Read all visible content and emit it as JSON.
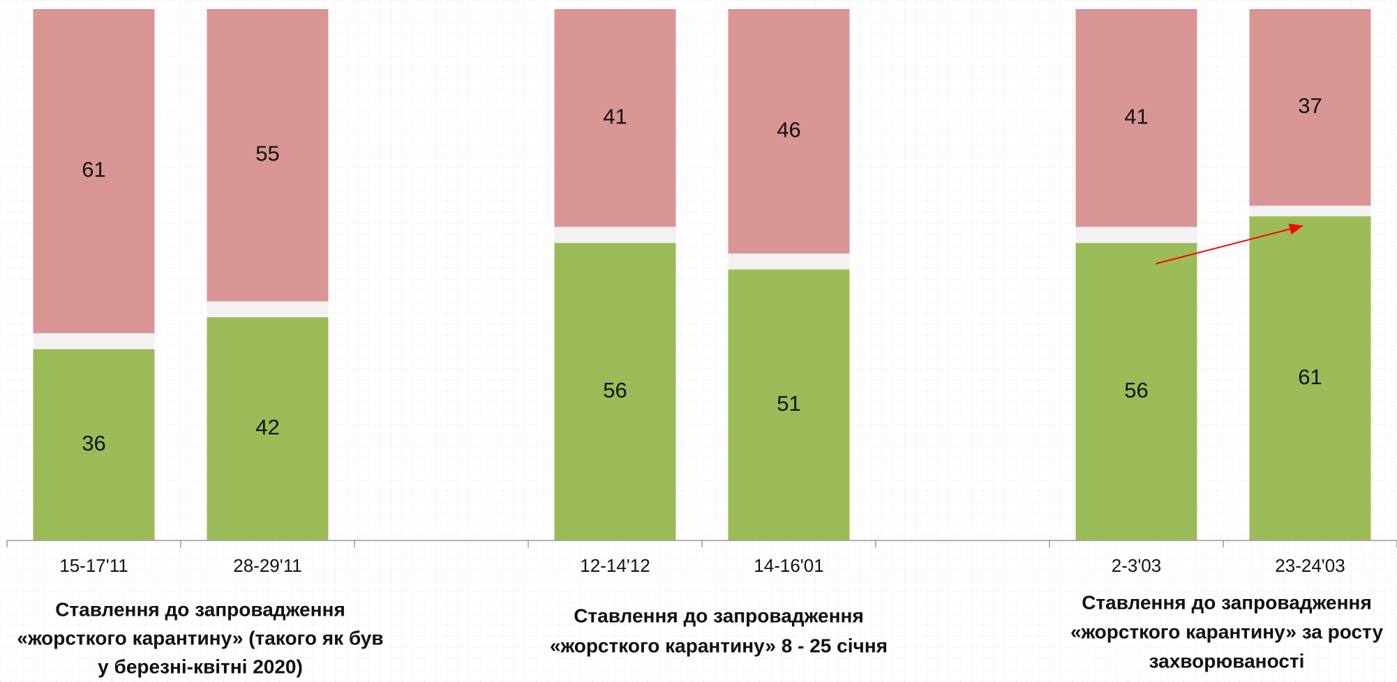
{
  "chart_data": {
    "type": "stacked_bar",
    "categories": [
      "15-17'11",
      "28-29'11",
      null,
      "12-14'12",
      "14-16'01",
      null,
      "2-3'03",
      "23-24'03"
    ],
    "series": [
      {
        "color": "#9bbb59",
        "show_labels": true,
        "values": [
          36,
          42,
          null,
          56,
          51,
          null,
          56,
          61
        ]
      },
      {
        "color": "#f2f2f2",
        "show_labels": false,
        "values": [
          3,
          3,
          null,
          3,
          3,
          null,
          3,
          2
        ]
      },
      {
        "color": "#d99594",
        "show_labels": true,
        "values": [
          61,
          55,
          null,
          41,
          46,
          null,
          41,
          37
        ]
      }
    ],
    "ylim": [
      0,
      100
    ],
    "group_labels": [
      [
        "Ставлення до запровадження",
        "«жорсткого карантину» (такого як був",
        "у березні-квітні 2020)"
      ],
      [
        "Ставлення до запровадження",
        "«жорсткого карантину» 8 - 25 січня"
      ],
      [
        "Ставлення до запровадження",
        "«жорсткого карантину» за росту",
        "захворюваності"
      ]
    ]
  }
}
